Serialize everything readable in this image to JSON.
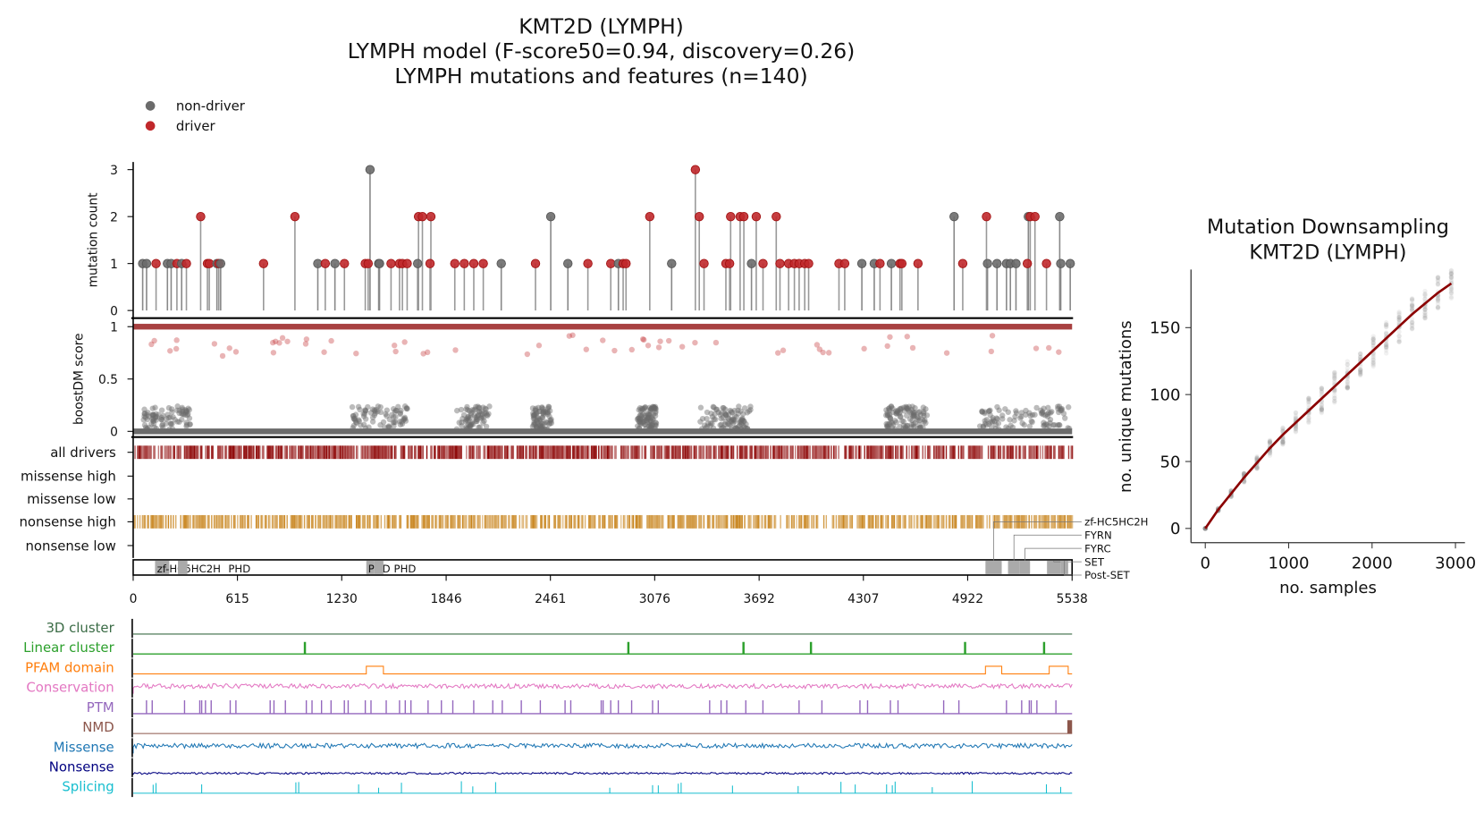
{
  "header": {
    "title_line1": "KMT2D (LYMPH)",
    "title_line2": "LYMPH model (F-score50=0.94, discovery=0.26)",
    "title_line3": "LYMPH mutations and features (n=140)"
  },
  "legend": {
    "nondriver": "non-driver",
    "driver": "driver"
  },
  "colors": {
    "driver": "#c0282b",
    "nondriver": "#6b6b6b",
    "boost_driver": "#8b0000",
    "nonsense_high": "#c8841c",
    "cluster3d": "#3a6b45",
    "linear_cluster": "#2ca02c",
    "pfam": "#ff7f0e",
    "conservation": "#e377c2",
    "ptm": "#9467bd",
    "nmd": "#8c564b",
    "missense": "#1f77b4",
    "nonsense": "#000080",
    "splicing": "#17becf",
    "downsampling_line": "#8b0000"
  },
  "chart_data": [
    {
      "type": "scatter",
      "subtype": "lollipop",
      "ylabel": "mutation count",
      "ylim": [
        0,
        3
      ],
      "yticks": [
        "0",
        "1",
        "2",
        "3"
      ],
      "xlim": [
        0,
        5538
      ],
      "mutations": [
        {
          "pos": 56,
          "count": 1,
          "driver": false
        },
        {
          "pos": 79,
          "count": 1,
          "driver": false
        },
        {
          "pos": 135,
          "count": 1,
          "driver": true
        },
        {
          "pos": 202,
          "count": 1,
          "driver": false
        },
        {
          "pos": 224,
          "count": 1,
          "driver": false
        },
        {
          "pos": 258,
          "count": 1,
          "driver": true
        },
        {
          "pos": 286,
          "count": 1,
          "driver": false
        },
        {
          "pos": 314,
          "count": 1,
          "driver": true
        },
        {
          "pos": 398,
          "count": 2,
          "driver": true
        },
        {
          "pos": 438,
          "count": 1,
          "driver": true
        },
        {
          "pos": 449,
          "count": 1,
          "driver": true
        },
        {
          "pos": 494,
          "count": 1,
          "driver": false
        },
        {
          "pos": 505,
          "count": 1,
          "driver": true
        },
        {
          "pos": 516,
          "count": 1,
          "driver": false
        },
        {
          "pos": 769,
          "count": 1,
          "driver": true
        },
        {
          "pos": 954,
          "count": 2,
          "driver": true
        },
        {
          "pos": 1089,
          "count": 1,
          "driver": false
        },
        {
          "pos": 1133,
          "count": 1,
          "driver": true
        },
        {
          "pos": 1190,
          "count": 1,
          "driver": false
        },
        {
          "pos": 1246,
          "count": 1,
          "driver": true
        },
        {
          "pos": 1369,
          "count": 1,
          "driver": true
        },
        {
          "pos": 1386,
          "count": 1,
          "driver": true
        },
        {
          "pos": 1397,
          "count": 3,
          "driver": false
        },
        {
          "pos": 1448,
          "count": 1,
          "driver": false
        },
        {
          "pos": 1453,
          "count": 1,
          "driver": false
        },
        {
          "pos": 1521,
          "count": 1,
          "driver": true
        },
        {
          "pos": 1571,
          "count": 1,
          "driver": true
        },
        {
          "pos": 1588,
          "count": 1,
          "driver": true
        },
        {
          "pos": 1616,
          "count": 1,
          "driver": true
        },
        {
          "pos": 1678,
          "count": 1,
          "driver": false
        },
        {
          "pos": 1683,
          "count": 2,
          "driver": true
        },
        {
          "pos": 1706,
          "count": 2,
          "driver": true
        },
        {
          "pos": 1751,
          "count": 1,
          "driver": true
        },
        {
          "pos": 1756,
          "count": 2,
          "driver": true
        },
        {
          "pos": 1897,
          "count": 1,
          "driver": true
        },
        {
          "pos": 1953,
          "count": 1,
          "driver": true
        },
        {
          "pos": 2009,
          "count": 1,
          "driver": true
        },
        {
          "pos": 2065,
          "count": 1,
          "driver": true
        },
        {
          "pos": 2171,
          "count": 1,
          "driver": false
        },
        {
          "pos": 2373,
          "count": 1,
          "driver": true
        },
        {
          "pos": 2463,
          "count": 2,
          "driver": false
        },
        {
          "pos": 2564,
          "count": 1,
          "driver": false
        },
        {
          "pos": 2682,
          "count": 1,
          "driver": true
        },
        {
          "pos": 2817,
          "count": 1,
          "driver": true
        },
        {
          "pos": 2862,
          "count": 1,
          "driver": false
        },
        {
          "pos": 2890,
          "count": 1,
          "driver": true
        },
        {
          "pos": 2907,
          "count": 1,
          "driver": true
        },
        {
          "pos": 3047,
          "count": 2,
          "driver": true
        },
        {
          "pos": 3176,
          "count": 1,
          "driver": false
        },
        {
          "pos": 3316,
          "count": 3,
          "driver": true
        },
        {
          "pos": 3339,
          "count": 2,
          "driver": true
        },
        {
          "pos": 3367,
          "count": 1,
          "driver": true
        },
        {
          "pos": 3496,
          "count": 1,
          "driver": true
        },
        {
          "pos": 3518,
          "count": 1,
          "driver": true
        },
        {
          "pos": 3524,
          "count": 2,
          "driver": true
        },
        {
          "pos": 3580,
          "count": 2,
          "driver": true
        },
        {
          "pos": 3602,
          "count": 2,
          "driver": true
        },
        {
          "pos": 3647,
          "count": 1,
          "driver": false
        },
        {
          "pos": 3675,
          "count": 2,
          "driver": true
        },
        {
          "pos": 3715,
          "count": 1,
          "driver": true
        },
        {
          "pos": 3793,
          "count": 2,
          "driver": true
        },
        {
          "pos": 3815,
          "count": 1,
          "driver": true
        },
        {
          "pos": 3866,
          "count": 1,
          "driver": true
        },
        {
          "pos": 3900,
          "count": 1,
          "driver": true
        },
        {
          "pos": 3928,
          "count": 1,
          "driver": true
        },
        {
          "pos": 3961,
          "count": 1,
          "driver": true
        },
        {
          "pos": 3984,
          "count": 1,
          "driver": true
        },
        {
          "pos": 4163,
          "count": 1,
          "driver": true
        },
        {
          "pos": 4197,
          "count": 1,
          "driver": true
        },
        {
          "pos": 4298,
          "count": 1,
          "driver": false
        },
        {
          "pos": 4371,
          "count": 1,
          "driver": false
        },
        {
          "pos": 4405,
          "count": 1,
          "driver": true
        },
        {
          "pos": 4472,
          "count": 1,
          "driver": false
        },
        {
          "pos": 4523,
          "count": 1,
          "driver": true
        },
        {
          "pos": 4534,
          "count": 1,
          "driver": true
        },
        {
          "pos": 4629,
          "count": 1,
          "driver": true
        },
        {
          "pos": 4842,
          "count": 2,
          "driver": false
        },
        {
          "pos": 4893,
          "count": 1,
          "driver": true
        },
        {
          "pos": 5033,
          "count": 2,
          "driver": true
        },
        {
          "pos": 5039,
          "count": 1,
          "driver": false
        },
        {
          "pos": 5095,
          "count": 1,
          "driver": false
        },
        {
          "pos": 5151,
          "count": 1,
          "driver": false
        },
        {
          "pos": 5174,
          "count": 1,
          "driver": false
        },
        {
          "pos": 5207,
          "count": 1,
          "driver": false
        },
        {
          "pos": 5274,
          "count": 1,
          "driver": true
        },
        {
          "pos": 5280,
          "count": 2,
          "driver": false
        },
        {
          "pos": 5291,
          "count": 2,
          "driver": true
        },
        {
          "pos": 5319,
          "count": 2,
          "driver": true
        },
        {
          "pos": 5387,
          "count": 1,
          "driver": true
        },
        {
          "pos": 5465,
          "count": 2,
          "driver": false
        },
        {
          "pos": 5471,
          "count": 1,
          "driver": false
        },
        {
          "pos": 5527,
          "count": 1,
          "driver": false
        }
      ]
    },
    {
      "type": "scatter",
      "subtype": "boostDM score per position",
      "ylabel": "boostDM score",
      "ylim": [
        0,
        1
      ],
      "yticks": [
        "0",
        "0.5",
        "1"
      ]
    },
    {
      "type": "heatmap",
      "subtype": "driver tracks",
      "rows": [
        "all drivers",
        "missense high",
        "missense low",
        "nonsense high",
        "nonsense low"
      ],
      "domains": [
        {
          "name": "zf-HC5HC2H",
          "start": 129,
          "end": 213
        },
        {
          "name": "PHD",
          "start": 264,
          "end": 320
        },
        {
          "name": "PHD",
          "start": 1375,
          "end": 1420
        },
        {
          "name": "PHD",
          "start": 1420,
          "end": 1476
        },
        {
          "name": "zf-HC5HC2H",
          "start": 5027,
          "end": 5123
        },
        {
          "name": "FYRN",
          "start": 5160,
          "end": 5230
        },
        {
          "name": "FYRC",
          "start": 5230,
          "end": 5290
        },
        {
          "name": "SET",
          "start": 5390,
          "end": 5470
        },
        {
          "name": "Post-SET",
          "start": 5470,
          "end": 5515
        }
      ],
      "xticks": [
        "0",
        "615",
        "1230",
        "1846",
        "2461",
        "3076",
        "3692",
        "4307",
        "4922",
        "5538"
      ],
      "xlim": [
        0,
        5538
      ]
    },
    {
      "type": "line",
      "subtype": "feature tracks",
      "tracks": [
        "3D cluster",
        "Linear cluster",
        "PFAM domain",
        "Conservation",
        "PTM",
        "NMD",
        "Missense",
        "Nonsense",
        "Splicing"
      ],
      "linear_cluster_peaks": [
        1010,
        2918,
        3597,
        3995,
        4904,
        5370
      ],
      "pfam_regions": [
        [
          1375,
          1476
        ],
        [
          5027,
          5123
        ],
        [
          5403,
          5515
        ]
      ],
      "nmd_region": [
        5510,
        5538
      ]
    },
    {
      "type": "line",
      "title_line1": "Mutation Downsampling",
      "title_line2": "KMT2D (LYMPH)",
      "xlabel": "no. samples",
      "ylabel": "no. unique mutations",
      "xticks": [
        "0",
        "1000",
        "2000",
        "3000"
      ],
      "yticks": [
        "0",
        "50",
        "100",
        "150"
      ],
      "xlim": [
        -170,
        3130
      ],
      "ylim": [
        -10,
        193
      ],
      "x": [
        0,
        155,
        310,
        465,
        620,
        775,
        930,
        1085,
        1240,
        1395,
        1550,
        1705,
        1860,
        2015,
        2170,
        2325,
        2480,
        2635,
        2790,
        2950
      ],
      "y": [
        0,
        14,
        26,
        38,
        49,
        60,
        70,
        79,
        88,
        97,
        106,
        115,
        124,
        133,
        142,
        151,
        160,
        168,
        176,
        183
      ]
    }
  ]
}
